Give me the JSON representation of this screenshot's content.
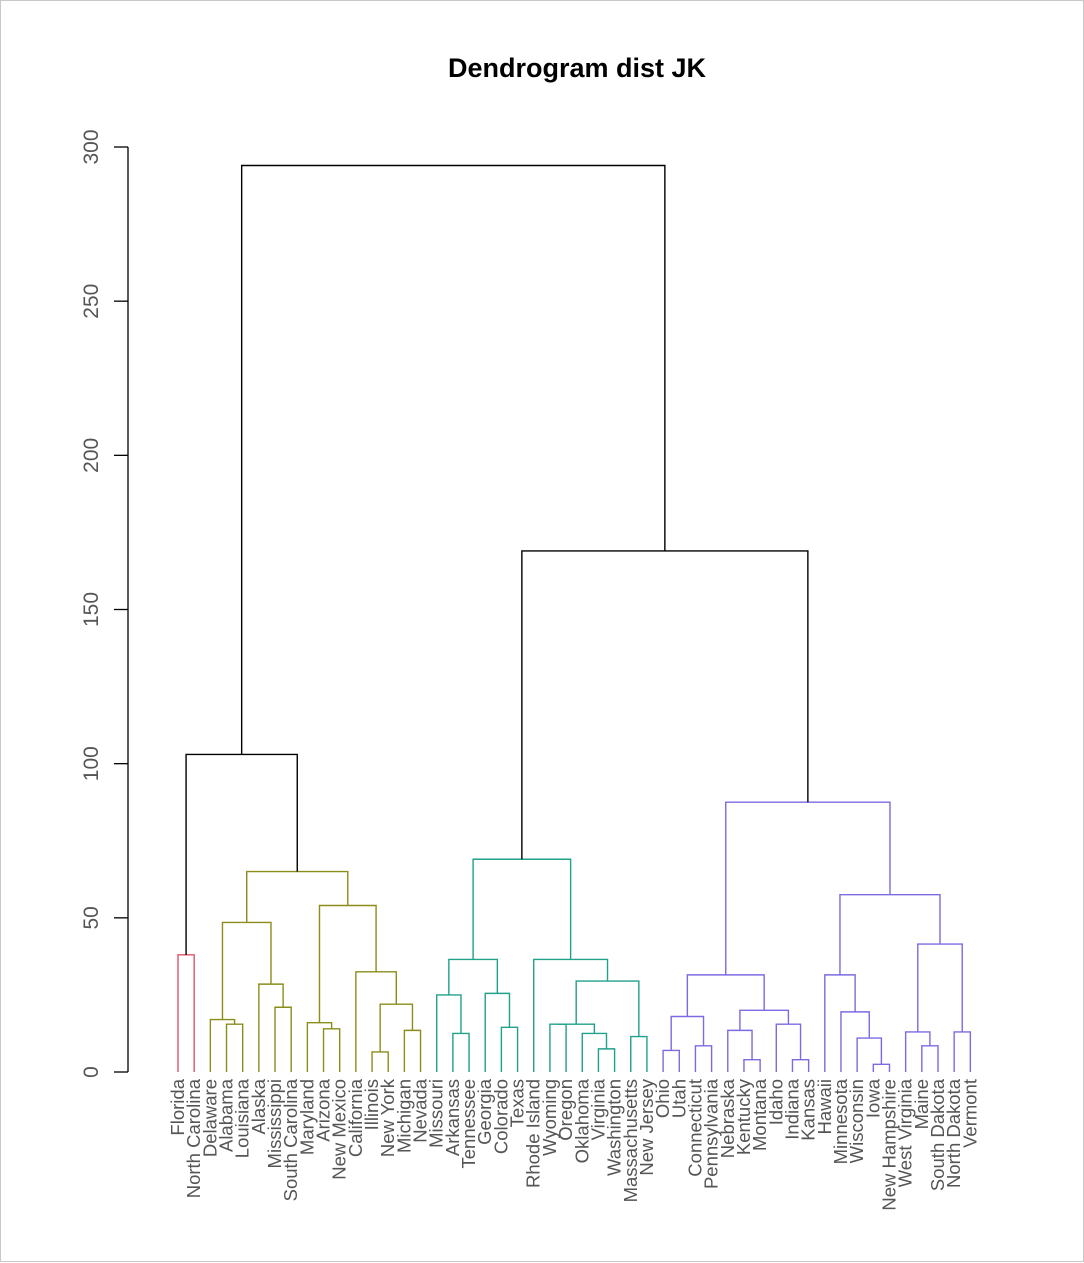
{
  "chart_data": {
    "type": "dendrogram",
    "title": "Dendrogram dist JK",
    "xlabel": "",
    "ylabel": "",
    "ylim": [
      0,
      300
    ],
    "yticks": [
      0,
      50,
      100,
      150,
      200,
      250,
      300
    ],
    "grid": false,
    "leaves": [
      "Florida",
      "North Carolina",
      "Delaware",
      "Alabama",
      "Louisiana",
      "Alaska",
      "Mississippi",
      "South Carolina",
      "Maryland",
      "Arizona",
      "New Mexico",
      "California",
      "Illinois",
      "New York",
      "Michigan",
      "Nevada",
      "Missouri",
      "Arkansas",
      "Tennessee",
      "Georgia",
      "Colorado",
      "Texas",
      "Rhode Island",
      "Wyoming",
      "Oregon",
      "Oklahoma",
      "Virginia",
      "Washington",
      "Massachusetts",
      "New Jersey",
      "Ohio",
      "Utah",
      "Connecticut",
      "Pennsylvania",
      "Nebraska",
      "Kentucky",
      "Montana",
      "Idaho",
      "Indiana",
      "Kansas",
      "Hawaii",
      "Minnesota",
      "Wisconsin",
      "Iowa",
      "New Hampshire",
      "West Virginia",
      "Maine",
      "South Dakota",
      "North Dakota",
      "Vermont"
    ],
    "clusters": [
      {
        "name": "1",
        "color": "#DF536B",
        "leaves": [
          0,
          1
        ]
      },
      {
        "name": "2",
        "color": "#8A8D19",
        "leaves": [
          2,
          15
        ]
      },
      {
        "name": "3",
        "color": "#21A08A",
        "leaves": [
          16,
          29
        ]
      },
      {
        "name": "4",
        "color": "#7A6BE2",
        "leaves": [
          30,
          49
        ]
      }
    ],
    "root_color": "#000000",
    "merges": [
      {
        "id": "m1",
        "a": "L0",
        "b": "L1",
        "h": 38
      },
      {
        "id": "m2",
        "a": "L3",
        "b": "L4",
        "h": 15.5
      },
      {
        "id": "m3",
        "a": "L2",
        "b": "m2",
        "h": 17
      },
      {
        "id": "m4",
        "a": "L6",
        "b": "L7",
        "h": 21
      },
      {
        "id": "m5",
        "a": "L5",
        "b": "m4",
        "h": 28.5
      },
      {
        "id": "m6",
        "a": "m3",
        "b": "m5",
        "h": 48.5
      },
      {
        "id": "m7",
        "a": "L9",
        "b": "L10",
        "h": 14
      },
      {
        "id": "m8",
        "a": "L8",
        "b": "m7",
        "h": 16
      },
      {
        "id": "m9",
        "a": "L12",
        "b": "L13",
        "h": 6.5
      },
      {
        "id": "m10",
        "a": "L14",
        "b": "L15",
        "h": 13.5
      },
      {
        "id": "m11",
        "a": "m9",
        "b": "m10",
        "h": 22
      },
      {
        "id": "m12",
        "a": "L11",
        "b": "m11",
        "h": 32.5
      },
      {
        "id": "m13",
        "a": "m8",
        "b": "m12",
        "h": 54
      },
      {
        "id": "m14",
        "a": "m6",
        "b": "m13",
        "h": 65
      },
      {
        "id": "m15",
        "a": "m1",
        "b": "m14",
        "h": 103
      },
      {
        "id": "m16",
        "a": "L17",
        "b": "L18",
        "h": 12.5
      },
      {
        "id": "m17",
        "a": "L16",
        "b": "m16",
        "h": 25
      },
      {
        "id": "m18",
        "a": "L20",
        "b": "L21",
        "h": 14.5
      },
      {
        "id": "m19",
        "a": "L19",
        "b": "m18",
        "h": 25.5
      },
      {
        "id": "m20",
        "a": "m17",
        "b": "m19",
        "h": 36.5
      },
      {
        "id": "m21",
        "a": "L23",
        "b": "L24",
        "h": 15.5
      },
      {
        "id": "m22",
        "a": "L26",
        "b": "L27",
        "h": 7.5
      },
      {
        "id": "m23",
        "a": "L25",
        "b": "m22",
        "h": 12.5
      },
      {
        "id": "m24",
        "a": "m21",
        "b": "m23",
        "h": 15.5
      },
      {
        "id": "m25",
        "a": "L28",
        "b": "L29",
        "h": 11.5
      },
      {
        "id": "m26",
        "a": "m24",
        "b": "m25",
        "h": 29.5
      },
      {
        "id": "m27",
        "a": "L22",
        "b": "m26",
        "h": 36.5
      },
      {
        "id": "m28",
        "a": "m20",
        "b": "m27",
        "h": 69
      },
      {
        "id": "m29",
        "a": "L30",
        "b": "L31",
        "h": 7
      },
      {
        "id": "m30",
        "a": "L32",
        "b": "L33",
        "h": 8.5
      },
      {
        "id": "m31",
        "a": "m29",
        "b": "m30",
        "h": 18
      },
      {
        "id": "m32",
        "a": "L35",
        "b": "L36",
        "h": 4
      },
      {
        "id": "m33",
        "a": "L34",
        "b": "m32",
        "h": 13.5
      },
      {
        "id": "m34",
        "a": "L38",
        "b": "L39",
        "h": 4
      },
      {
        "id": "m35",
        "a": "L37",
        "b": "m34",
        "h": 15.5
      },
      {
        "id": "m36",
        "a": "m33",
        "b": "m35",
        "h": 20
      },
      {
        "id": "m37",
        "a": "m31",
        "b": "m36",
        "h": 31.5
      },
      {
        "id": "m38",
        "a": "L43",
        "b": "L44",
        "h": 2.5
      },
      {
        "id": "m39",
        "a": "L42",
        "b": "m38",
        "h": 11
      },
      {
        "id": "m40",
        "a": "L41",
        "b": "m39",
        "h": 19.5
      },
      {
        "id": "m41",
        "a": "L40",
        "b": "m40",
        "h": 31.5
      },
      {
        "id": "m42",
        "a": "L46",
        "b": "L47",
        "h": 8.5
      },
      {
        "id": "m43",
        "a": "L45",
        "b": "m42",
        "h": 13
      },
      {
        "id": "m44",
        "a": "L48",
        "b": "L49",
        "h": 13
      },
      {
        "id": "m45",
        "a": "m43",
        "b": "m44",
        "h": 41.5
      },
      {
        "id": "m46",
        "a": "m41",
        "b": "m45",
        "h": 57.5
      },
      {
        "id": "m47",
        "a": "m37",
        "b": "m46",
        "h": 87.5
      },
      {
        "id": "m48",
        "a": "m28",
        "b": "m47",
        "h": 169
      },
      {
        "id": "m49",
        "a": "m15",
        "b": "m48",
        "h": 294
      }
    ]
  }
}
